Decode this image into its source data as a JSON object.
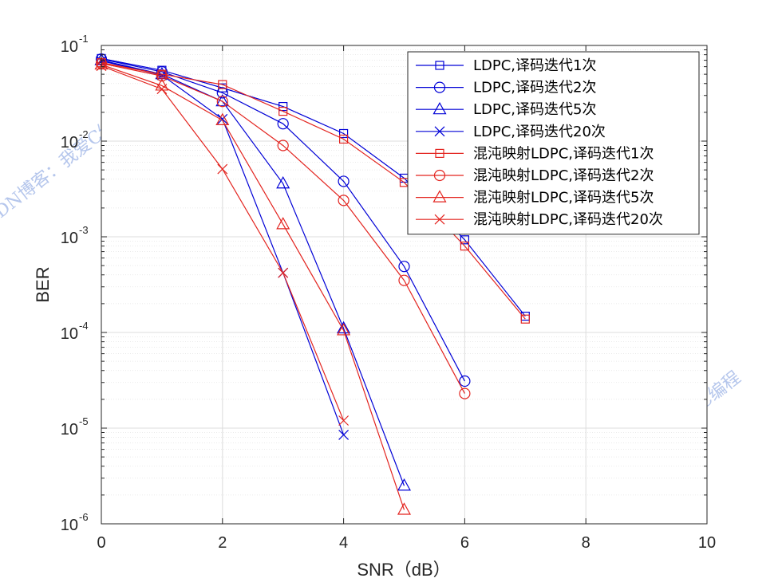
{
  "chart_data": {
    "type": "line",
    "xlabel": "SNR（dB）",
    "ylabel": "BER",
    "xscale": "linear",
    "yscale": "log",
    "xlim": [
      0,
      10
    ],
    "ylim": [
      1e-06,
      0.1
    ],
    "grid": true,
    "minor_grid": true,
    "x_ticks": [
      0,
      2,
      4,
      6,
      8,
      10
    ],
    "y_ticks": [
      {
        "value": 0.1,
        "base": "10",
        "exp": "-1"
      },
      {
        "value": 0.01,
        "base": "10",
        "exp": "-2"
      },
      {
        "value": 0.001,
        "base": "10",
        "exp": "-3"
      },
      {
        "value": 0.0001,
        "base": "10",
        "exp": "-4"
      },
      {
        "value": 1e-05,
        "base": "10",
        "exp": "-5"
      },
      {
        "value": 1e-06,
        "base": "10",
        "exp": "-6"
      }
    ],
    "legend_position": "top-right",
    "series": [
      {
        "name": "LDPC,译码迭代1次",
        "color": "#0000d6",
        "marker": "square",
        "x": [
          0,
          1,
          2,
          3,
          4,
          5,
          6,
          7
        ],
        "y": [
          0.073,
          0.055,
          0.036,
          0.023,
          0.012,
          0.0041,
          0.00093,
          0.000148
        ]
      },
      {
        "name": "LDPC,译码迭代2次",
        "color": "#0000d6",
        "marker": "circle",
        "x": [
          0,
          1,
          2,
          3,
          4,
          5,
          6
        ],
        "y": [
          0.072,
          0.053,
          0.032,
          0.0152,
          0.0038,
          0.00049,
          3.1e-05
        ]
      },
      {
        "name": "LDPC,译码迭代5次",
        "color": "#0000d6",
        "marker": "triangle",
        "x": [
          0,
          1,
          2,
          3,
          4,
          5
        ],
        "y": [
          0.07,
          0.05,
          0.026,
          0.0036,
          0.00011,
          2.5e-06
        ]
      },
      {
        "name": "LDPC,译码迭代20次",
        "color": "#0000d6",
        "marker": "x",
        "x": [
          0,
          1,
          2,
          3,
          4
        ],
        "y": [
          0.069,
          0.049,
          0.017,
          0.00042,
          8.5e-06
        ]
      },
      {
        "name": "混沌映射LDPC,译码迭代1次",
        "color": "#e3241f",
        "marker": "square",
        "x": [
          0,
          1,
          2,
          3,
          4,
          5,
          6,
          7
        ],
        "y": [
          0.066,
          0.05,
          0.039,
          0.0205,
          0.0105,
          0.0037,
          0.0008,
          0.000138
        ]
      },
      {
        "name": "混沌映射LDPC,译码迭代2次",
        "color": "#e3241f",
        "marker": "circle",
        "x": [
          0,
          1,
          2,
          3,
          4,
          5,
          6
        ],
        "y": [
          0.065,
          0.048,
          0.026,
          0.009,
          0.0024,
          0.00035,
          2.3e-05
        ]
      },
      {
        "name": "混沌映射LDPC,译码迭代5次",
        "color": "#e3241f",
        "marker": "triangle",
        "x": [
          0,
          1,
          2,
          3,
          4,
          5
        ],
        "y": [
          0.063,
          0.038,
          0.0165,
          0.00135,
          0.000105,
          1.4e-06
        ]
      },
      {
        "name": "混沌映射LDPC,译码迭代20次",
        "color": "#e3241f",
        "marker": "x",
        "x": [
          0,
          1,
          2,
          3,
          4
        ],
        "y": [
          0.061,
          0.035,
          0.0051,
          0.00042,
          1.2e-05
        ]
      }
    ]
  },
  "watermark": {
    "text": "CSDN博客：我爱C编程",
    "color": "#9db4e6"
  }
}
